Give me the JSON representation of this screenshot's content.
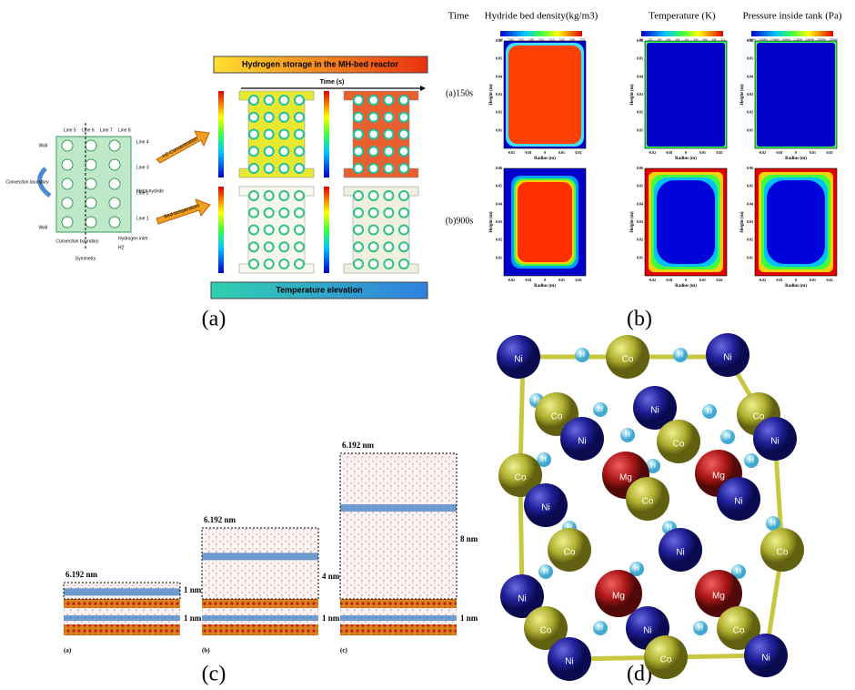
{
  "panel_a": {
    "banner": "Hydrogen storage in the MH-bed reactor",
    "time_axis": "Time (s)",
    "arrow_top": "H2-Concentration",
    "arrow_bottom": "Bed-temperature",
    "footer": "Temperature elevation",
    "schematic": {
      "wall_top": "Wall",
      "wall_bottom": "Wall",
      "top_lines": [
        "Line 5",
        "Line 6",
        "Line 7",
        "Line 8"
      ],
      "right_lines": [
        "Line 4",
        "Line 3",
        "Line 2",
        "Line 1"
      ],
      "convection_left": "Convection boundary",
      "convection_bottom": "Convection boundary",
      "symmetry": "Symmetry",
      "metal_hydride": "Metal hydride",
      "hydrogen_inlet": "Hydrogen inlet",
      "h2": "H2"
    }
  },
  "panel_b": {
    "time_header": "Time",
    "columns": [
      "Hydride bed density(kg/m3)",
      "Temperature (K)",
      "Pressure inside tank (Pa)"
    ],
    "rows": [
      "(a)150s",
      "(b)900s"
    ],
    "colorbars": [
      [
        7170,
        7180,
        7190,
        7200,
        7210,
        7220,
        7230,
        7240,
        7250
      ],
      [
        289,
        291,
        294,
        296,
        299,
        301,
        304,
        306,
        308,
        311
      ],
      [
        130000,
        150000,
        170000,
        190000,
        210000,
        230000,
        250000,
        270000
      ]
    ],
    "height_label": "Height (m)",
    "radius_label": "Radius (m)",
    "height_ticks": [
      0.01,
      0.02,
      0.03,
      0.04,
      0.05,
      0.06
    ],
    "radius_ticks": [
      -0.02,
      -0.01,
      0,
      0.01,
      0.02
    ]
  },
  "panel_c": {
    "widths": [
      "6.192 nm",
      "6.192 nm",
      "6.192 nm"
    ],
    "gap_labels": [
      [
        "1 nm",
        "1 nm"
      ],
      [
        "4 nm",
        "1 nm"
      ],
      [
        "8 nm",
        "1 nm"
      ]
    ],
    "sublabels": [
      "(a)",
      "(b)",
      "(c)"
    ]
  },
  "panel_d": {
    "atoms": [
      "Ni",
      "Co",
      "Ni",
      "Co",
      "Ni",
      "Co",
      "Ni",
      "Co",
      "Ni",
      "Co",
      "Mg",
      "Mg",
      "Ni",
      "Co",
      "Ni",
      "Co",
      "Ni",
      "Co",
      "Mg",
      "Mg",
      "Ni",
      "Co",
      "Ni",
      "Co",
      "Ni",
      "Co",
      "Ni"
    ],
    "hydrogen": [
      "H",
      "H",
      "H",
      "H",
      "H",
      "H",
      "H",
      "H",
      "H",
      "H",
      "H",
      "H",
      "H",
      "H",
      "H",
      "H",
      "H",
      "H"
    ]
  },
  "captions": [
    "(a)",
    "(b)",
    "(c)",
    "(d)"
  ]
}
